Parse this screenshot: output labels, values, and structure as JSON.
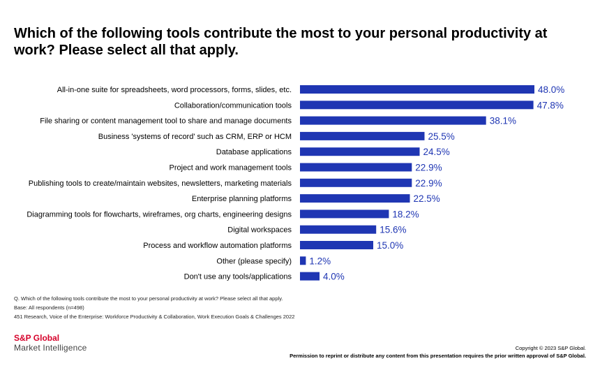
{
  "title": "Which of the following tools contribute the most to your personal productivity at work? Please select all that apply.",
  "chart_data": {
    "type": "bar",
    "orientation": "horizontal",
    "categories": [
      "All-in-one suite for spreadsheets, word processors, forms, slides, etc.",
      "Collaboration/communication tools",
      "File sharing or content management tool to share and manage documents",
      "Business 'systems of record' such as CRM, ERP or HCM",
      "Database applications",
      "Project and work management tools",
      "Publishing tools to create/maintain websites, newsletters, marketing materials",
      "Enterprise planning platforms",
      "Diagramming tools for flowcharts, wireframes, org charts, engineering designs",
      "Digital workspaces",
      "Process and workflow automation platforms",
      "Other (please specify)",
      "Don't use any tools/applications"
    ],
    "values": [
      48.0,
      47.8,
      38.1,
      25.5,
      24.5,
      22.9,
      22.9,
      22.5,
      18.2,
      15.6,
      15.0,
      1.2,
      4.0
    ],
    "value_labels": [
      "48.0%",
      "47.8%",
      "38.1%",
      "25.5%",
      "24.5%",
      "22.9%",
      "22.9%",
      "22.5%",
      "18.2%",
      "15.6%",
      "15.0%",
      "1.2%",
      "4.0%"
    ],
    "bar_color": "#1f36b3",
    "label_color": "#1f36b3",
    "xlim": [
      0,
      48
    ],
    "grid": false,
    "legend": "none"
  },
  "notes": [
    "Q. Which of the following tools contribute the most to your personal productivity at work? Please select all that apply.",
    "Base: All respondents (n=498)",
    "451 Research, Voice of the Enterprise: Workforce Productivity & Collaboration, Work Execution Goals & Challenges 2022"
  ],
  "brand": {
    "name": "S&P Global",
    "sub": "Market Intelligence",
    "name_color": "#d6002a"
  },
  "copyright": {
    "line1": "Copyright © 2023 S&P Global.",
    "line2": "Permission to reprint or distribute any content from this presentation requires the prior written approval of S&P Global."
  }
}
